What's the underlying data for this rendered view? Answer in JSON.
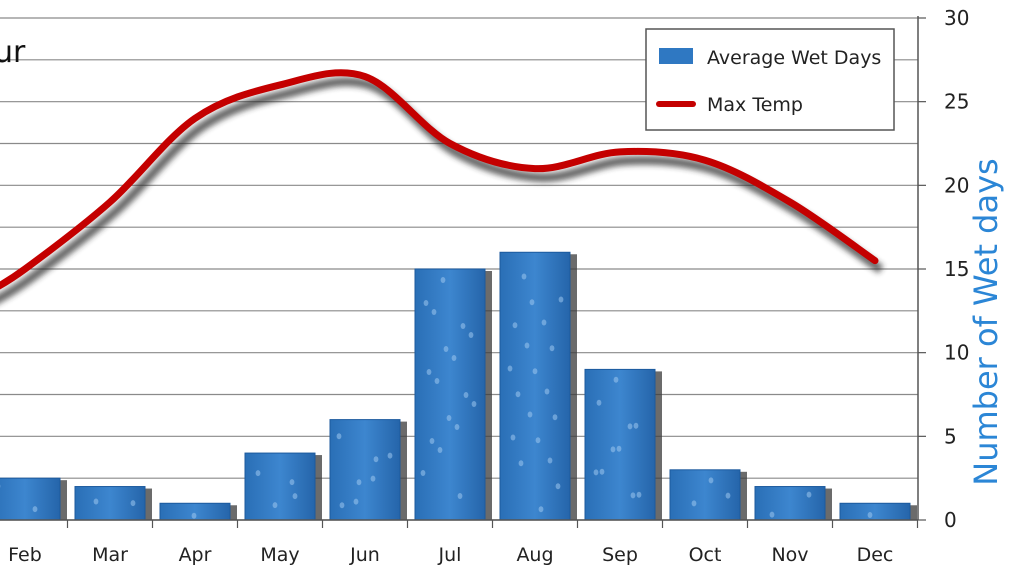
{
  "chart_data": {
    "type": "bar",
    "title": "ur",
    "categories": [
      "Feb",
      "Mar",
      "Apr",
      "May",
      "Jun",
      "Jul",
      "Aug",
      "Sep",
      "Oct",
      "Nov",
      "Dec"
    ],
    "series": [
      {
        "name": "Average Wet Days",
        "kind": "bar",
        "axis": "right",
        "values": [
          2.5,
          2,
          1,
          4,
          6,
          15,
          16,
          9,
          3,
          2,
          1
        ]
      },
      {
        "name": "Max Temp",
        "kind": "line",
        "axis": "left",
        "values": [
          15,
          19,
          24,
          26,
          26.5,
          22.5,
          21,
          22,
          21.5,
          19,
          15.5
        ]
      }
    ],
    "y_right": {
      "label": "Number of Wet days",
      "ylim": [
        0,
        30
      ],
      "ticks": [
        "0",
        "5",
        "10",
        "15",
        "20",
        "25",
        "30"
      ]
    },
    "grid": true,
    "legend_position": "top-right",
    "colors": {
      "bar": "#2f78c2",
      "bar_dark": "#1c5a9e",
      "line": "#c40000",
      "axis_title": "#2b86d6",
      "grid": "#8a8a8a"
    }
  }
}
